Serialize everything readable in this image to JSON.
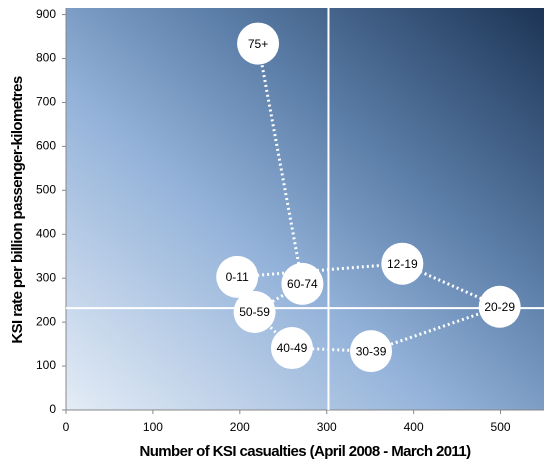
{
  "chart_data": {
    "type": "scatter",
    "xlabel": "Number of KSI casualties (April 2008 - March 2011)",
    "ylabel": "KSI rate per billion passenger-kilometres",
    "labels": [
      "0-11",
      "12-19",
      "20-29",
      "30-39",
      "40-49",
      "50-59",
      "60-74",
      "75+"
    ],
    "x": [
      197,
      387,
      499,
      351,
      260,
      217,
      272,
      221
    ],
    "values": [
      303,
      333,
      235,
      134,
      141,
      223,
      287,
      834
    ],
    "color": "#ffffff",
    "line_color": "#ffffff",
    "reference_x": 302,
    "reference_y": 232,
    "xlim": [
      0,
      550
    ],
    "xticks": [
      0,
      100,
      200,
      300,
      400,
      500
    ],
    "ylim": [
      0,
      915
    ],
    "yticks": [
      0,
      100,
      200,
      300,
      400,
      500,
      600,
      700,
      800,
      900
    ]
  }
}
